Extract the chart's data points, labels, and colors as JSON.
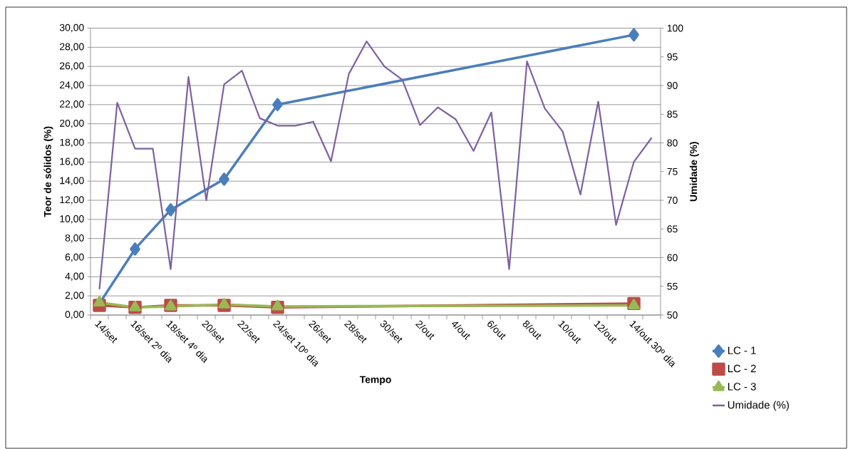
{
  "chart_data": {
    "type": "line",
    "xlabel": "Tempo",
    "ylabel": "Teor de sólidos (%)",
    "y2label": "Umidade (%)",
    "categories": [
      "14/set",
      null,
      "16/set 2º dia",
      null,
      "18/set 4º dia",
      null,
      "20/set",
      null,
      "22/set",
      null,
      "24/set 10º dia",
      null,
      "26/set",
      null,
      "28/set",
      null,
      "30/set",
      null,
      "2/out",
      null,
      "4/out",
      null,
      "6/out",
      null,
      "8/out",
      null,
      "10/out",
      null,
      "12/out",
      null,
      "14/out 30º dia",
      null
    ],
    "series": [
      {
        "name": "LC - 1",
        "color": "#4a7ebb",
        "marker": "diamond",
        "values": [
          1.2,
          null,
          6.9,
          null,
          11.0,
          null,
          null,
          14.2,
          null,
          null,
          22.0,
          null,
          null,
          null,
          null,
          null,
          null,
          null,
          null,
          null,
          null,
          null,
          null,
          null,
          null,
          null,
          null,
          null,
          null,
          null,
          29.3,
          null
        ]
      },
      {
        "name": "LC - 2",
        "color": "#be4b48",
        "marker": "square",
        "values": [
          1.0,
          null,
          0.8,
          null,
          1.0,
          null,
          null,
          1.0,
          null,
          null,
          0.8,
          null,
          null,
          null,
          null,
          null,
          null,
          null,
          null,
          null,
          null,
          null,
          null,
          null,
          null,
          null,
          null,
          null,
          null,
          null,
          1.2,
          null
        ]
      },
      {
        "name": "LC - 3",
        "color": "#98b954",
        "marker": "triangle",
        "values": [
          1.3,
          null,
          0.8,
          null,
          0.9,
          null,
          null,
          1.1,
          null,
          null,
          0.9,
          null,
          null,
          null,
          null,
          null,
          null,
          null,
          null,
          null,
          null,
          null,
          null,
          null,
          null,
          null,
          null,
          null,
          null,
          null,
          1.0,
          null
        ]
      },
      {
        "name": "Umidade (%)",
        "color": "#7d60a0",
        "marker": "none",
        "axis": "y2",
        "values": [
          54.5,
          87.0,
          79.0,
          79.0,
          58.0,
          91.5,
          70.0,
          90.2,
          92.6,
          84.3,
          83.0,
          83.0,
          83.7,
          76.8,
          92.0,
          97.7,
          93.3,
          91.0,
          83.1,
          86.2,
          84.1,
          78.6,
          85.3,
          58.0,
          94.2,
          86.0,
          82.0,
          71.0,
          87.2,
          65.7,
          76.7,
          80.9
        ]
      }
    ],
    "ylim": [
      0,
      30
    ],
    "yticks": [
      {
        "value": 0,
        "label": "0,00"
      },
      {
        "value": 2,
        "label": "2,00"
      },
      {
        "value": 4,
        "label": "4,00"
      },
      {
        "value": 6,
        "label": "6,00"
      },
      {
        "value": 8,
        "label": "8,00"
      },
      {
        "value": 10,
        "label": "10,00"
      },
      {
        "value": 12,
        "label": "12,00"
      },
      {
        "value": 14,
        "label": "14,00"
      },
      {
        "value": 16,
        "label": "16,00"
      },
      {
        "value": 18,
        "label": "18,00"
      },
      {
        "value": 20,
        "label": "20,00"
      },
      {
        "value": 22,
        "label": "22,00"
      },
      {
        "value": 24,
        "label": "24,00"
      },
      {
        "value": 26,
        "label": "26,00"
      },
      {
        "value": 28,
        "label": "28,00"
      },
      {
        "value": 30,
        "label": "30,00"
      }
    ],
    "y2lim": [
      50,
      100
    ],
    "y2ticks": [
      50,
      55,
      60,
      65,
      70,
      75,
      80,
      85,
      90,
      95,
      100
    ],
    "grid": "y",
    "legend": "right",
    "line_style": "solid"
  }
}
